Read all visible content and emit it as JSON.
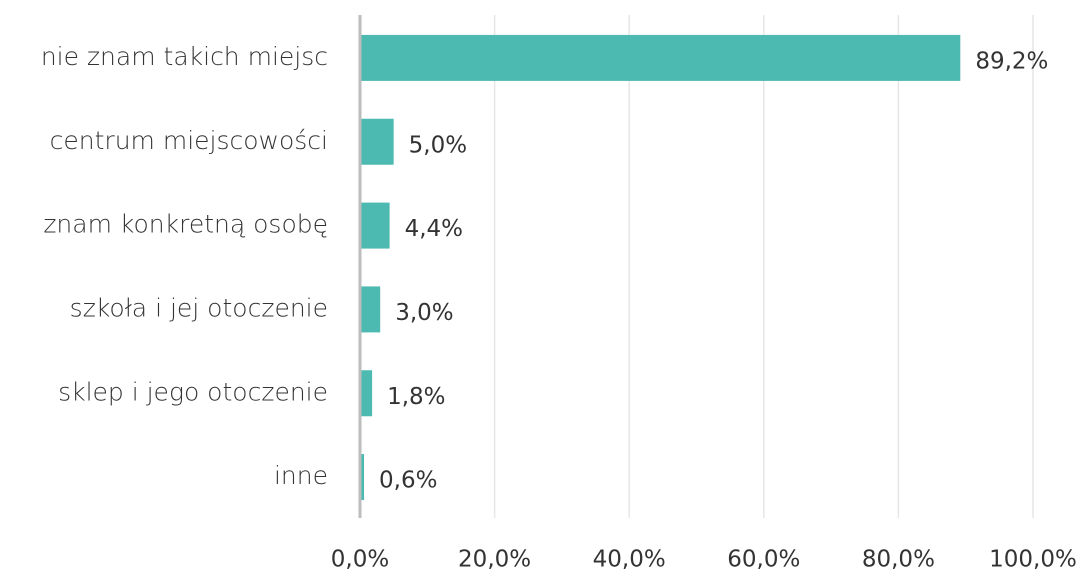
{
  "chart_data": {
    "type": "hbar",
    "categories": [
      "nie znam takich miejsc",
      "centrum miejscowości",
      "znam konkretną osobę",
      "szkoła i jej otoczenie",
      "sklep i jego otoczenie",
      "inne"
    ],
    "values": [
      89.2,
      5.0,
      4.4,
      3.0,
      1.8,
      0.6
    ],
    "value_labels": [
      "89,2%",
      "5,0%",
      "4,4%",
      "3,0%",
      "1,8%",
      "0,6%"
    ],
    "color": "#4dbab2",
    "xlim": [
      0,
      100
    ],
    "xticks": [
      {
        "value": 0,
        "label": "0,0%"
      },
      {
        "value": 20,
        "label": "20,0%"
      },
      {
        "value": 40,
        "label": "40,0%"
      },
      {
        "value": 60,
        "label": "60,0%"
      },
      {
        "value": 80,
        "label": "80,0%"
      },
      {
        "value": 100,
        "label": "100,0%"
      }
    ],
    "grid": true
  }
}
